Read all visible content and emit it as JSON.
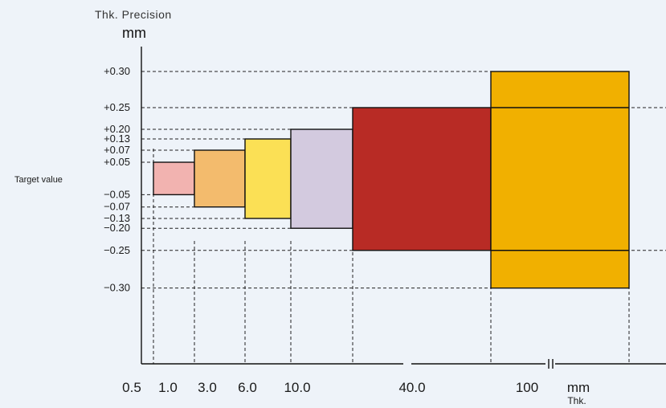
{
  "chart_data": {
    "type": "bar",
    "title": "Thk. Precision",
    "ylabel_unit": "mm",
    "xlabel": "Thk.",
    "xlabel_unit": "mm",
    "target_label": "Target value",
    "y_ticks": [
      {
        "value": 0.3,
        "label": "+0.30"
      },
      {
        "value": 0.25,
        "label": "+0.25"
      },
      {
        "value": 0.2,
        "label": "+0.20"
      },
      {
        "value": 0.13,
        "label": "+0.13"
      },
      {
        "value": 0.07,
        "label": "+0.07"
      },
      {
        "value": 0.05,
        "label": "+0.05"
      },
      {
        "value": -0.05,
        "label": "−0.05"
      },
      {
        "value": -0.07,
        "label": "−0.07"
      },
      {
        "value": -0.13,
        "label": "−0.13"
      },
      {
        "value": -0.2,
        "label": "−0.20"
      },
      {
        "value": -0.25,
        "label": "−0.25"
      },
      {
        "value": -0.3,
        "label": "−0.30"
      }
    ],
    "x_ticks": [
      "0.5",
      "1.0",
      "3.0",
      "6.0",
      "10.0",
      "40.0",
      "100"
    ],
    "bars": [
      {
        "from": "1.0",
        "to": "3.0",
        "tolerance": 0.05,
        "color": "#f2b3b0"
      },
      {
        "from": "3.0",
        "to": "6.0",
        "tolerance": 0.07,
        "color": "#f3bb6d"
      },
      {
        "from": "6.0",
        "to": "10.0",
        "tolerance": 0.13,
        "color": "#fbe055"
      },
      {
        "from": "10.0",
        "to": "40.0",
        "tolerance": 0.2,
        "color": "#d3cadf"
      },
      {
        "from": "40.0",
        "to": "100",
        "tolerance": 0.25,
        "color": "#b82b25"
      },
      {
        "from": "100",
        "to": "",
        "tolerance": 0.3,
        "color": "#f1b000"
      }
    ],
    "legend": "none",
    "grid": "dashed reference lines"
  }
}
